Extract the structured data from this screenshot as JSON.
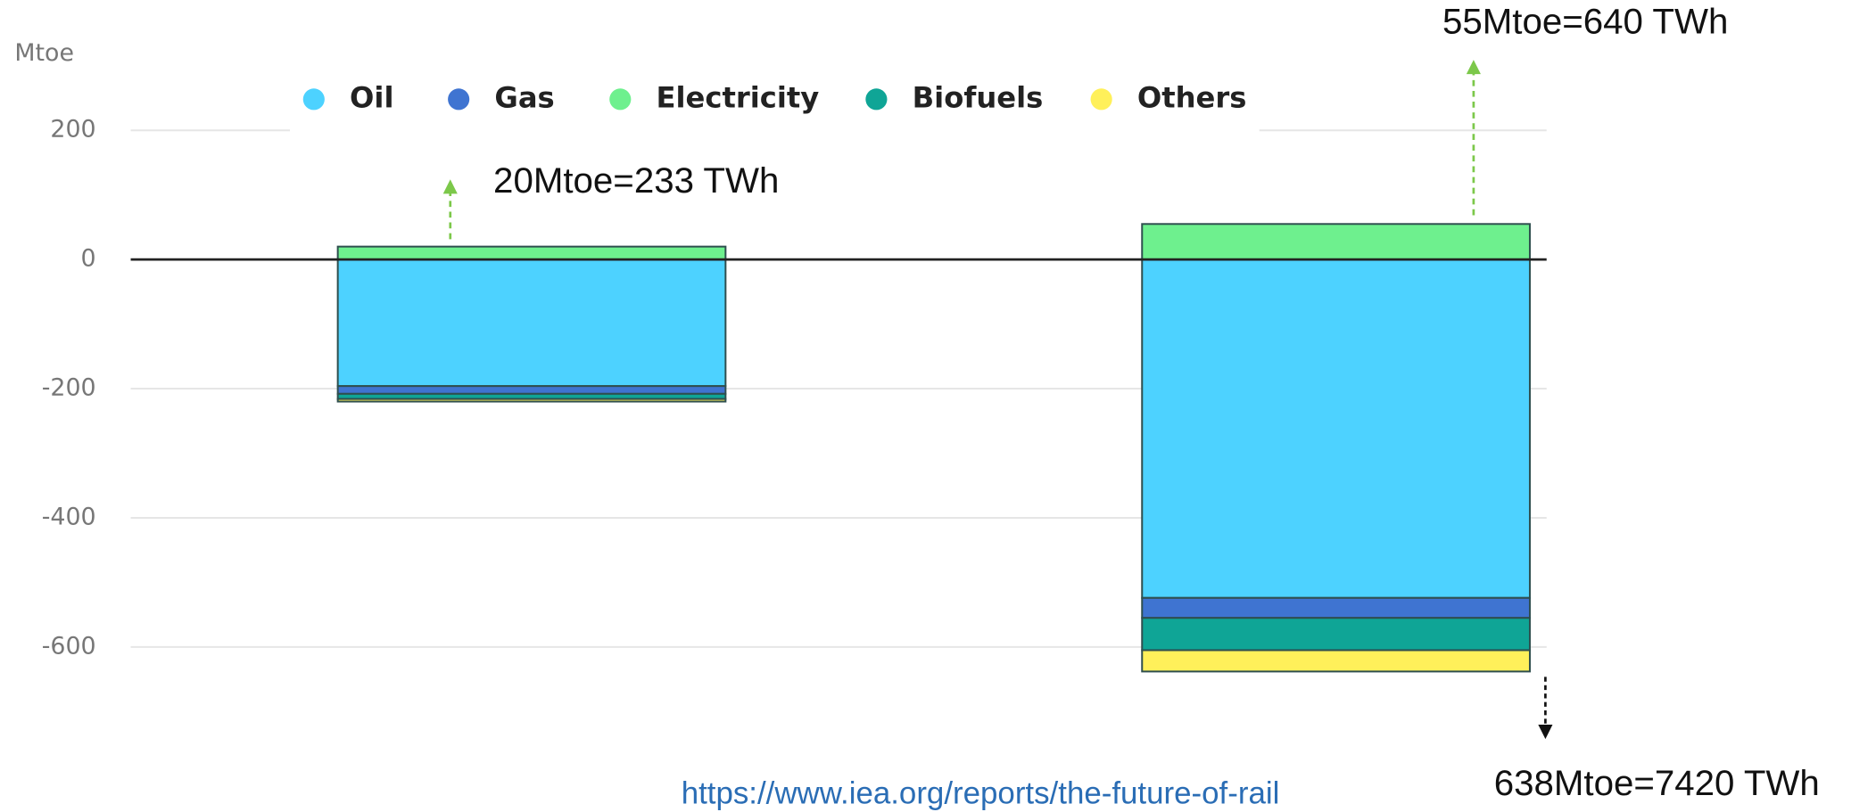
{
  "chart_data": {
    "type": "bar",
    "stacked": true,
    "y_label": "Mtoe",
    "categories": [
      null,
      null
    ],
    "series": [
      {
        "name": "Oil",
        "color": "#4dd2ff",
        "values": [
          -196,
          -524
        ]
      },
      {
        "name": "Gas",
        "color": "#3f74d1",
        "values": [
          -12,
          -31
        ]
      },
      {
        "name": "Electricity",
        "color": "#6ef08e",
        "values": [
          20,
          55
        ]
      },
      {
        "name": "Biofuels",
        "color": "#0fa596",
        "values": [
          -8,
          -50
        ]
      },
      {
        "name": "Others",
        "color": "#fff05a",
        "values": [
          -4,
          -33
        ]
      }
    ],
    "ylim": [
      -700,
      250
    ],
    "yticks": [
      -600,
      -400,
      -200,
      0,
      200
    ],
    "grid": true,
    "legend": "top",
    "annotations": [
      "20Mtoe=233 TWh",
      "55Mtoe=640 TWh",
      "638Mtoe=7420 TWh"
    ],
    "source": "https://www.iea.org/reports/the-future-of-rail"
  }
}
